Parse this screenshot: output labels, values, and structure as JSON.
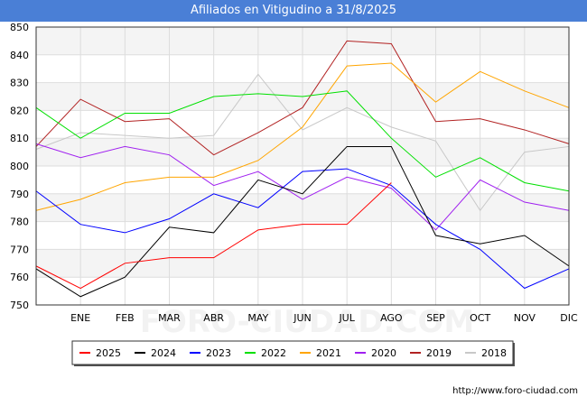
{
  "header": {
    "title": "Afiliados en Vitigudino a 31/8/2025"
  },
  "footer": {
    "source": "http://www.foro-ciudad.com"
  },
  "watermark": "FORO-CIUDAD.COM",
  "chart_data": {
    "type": "line",
    "title": "Afiliados en Vitigudino a 31/8/2025",
    "xlabel": "",
    "ylabel": "",
    "x": [
      "",
      "ENE",
      "FEB",
      "MAR",
      "ABR",
      "MAY",
      "JUN",
      "JUL",
      "AGO",
      "SEP",
      "OCT",
      "NOV",
      "DIC"
    ],
    "ylim": [
      750,
      850
    ],
    "yticks": [
      750,
      760,
      770,
      780,
      790,
      800,
      810,
      820,
      830,
      840,
      850
    ],
    "grid": true,
    "legend_position": "bottom",
    "series": [
      {
        "name": "2025",
        "color": "#ff0000",
        "values": [
          764,
          756,
          765,
          767,
          767,
          777,
          779,
          779,
          794,
          null,
          null,
          null,
          null
        ]
      },
      {
        "name": "2024",
        "color": "#000000",
        "values": [
          763,
          753,
          760,
          778,
          776,
          795,
          790,
          807,
          807,
          775,
          772,
          775,
          764
        ]
      },
      {
        "name": "2023",
        "color": "#0000ff",
        "values": [
          791,
          779,
          776,
          781,
          790,
          785,
          798,
          799,
          793,
          779,
          770,
          756,
          763
        ]
      },
      {
        "name": "2022",
        "color": "#00e000",
        "values": [
          821,
          810,
          819,
          819,
          825,
          826,
          825,
          827,
          810,
          796,
          803,
          794,
          791
        ]
      },
      {
        "name": "2021",
        "color": "#ffa500",
        "values": [
          784,
          788,
          794,
          796,
          796,
          802,
          814,
          836,
          837,
          823,
          834,
          827,
          821
        ]
      },
      {
        "name": "2020",
        "color": "#a020f0",
        "values": [
          808,
          803,
          807,
          804,
          793,
          798,
          788,
          796,
          792,
          777,
          795,
          787,
          784
        ]
      },
      {
        "name": "2019",
        "color": "#b22222",
        "values": [
          807,
          824,
          816,
          817,
          804,
          812,
          821,
          845,
          844,
          816,
          817,
          813,
          808
        ]
      },
      {
        "name": "2018",
        "color": "#c8c8c8",
        "values": [
          806,
          812,
          811,
          810,
          811,
          833,
          813,
          821,
          814,
          809,
          784,
          805,
          807
        ]
      }
    ]
  }
}
